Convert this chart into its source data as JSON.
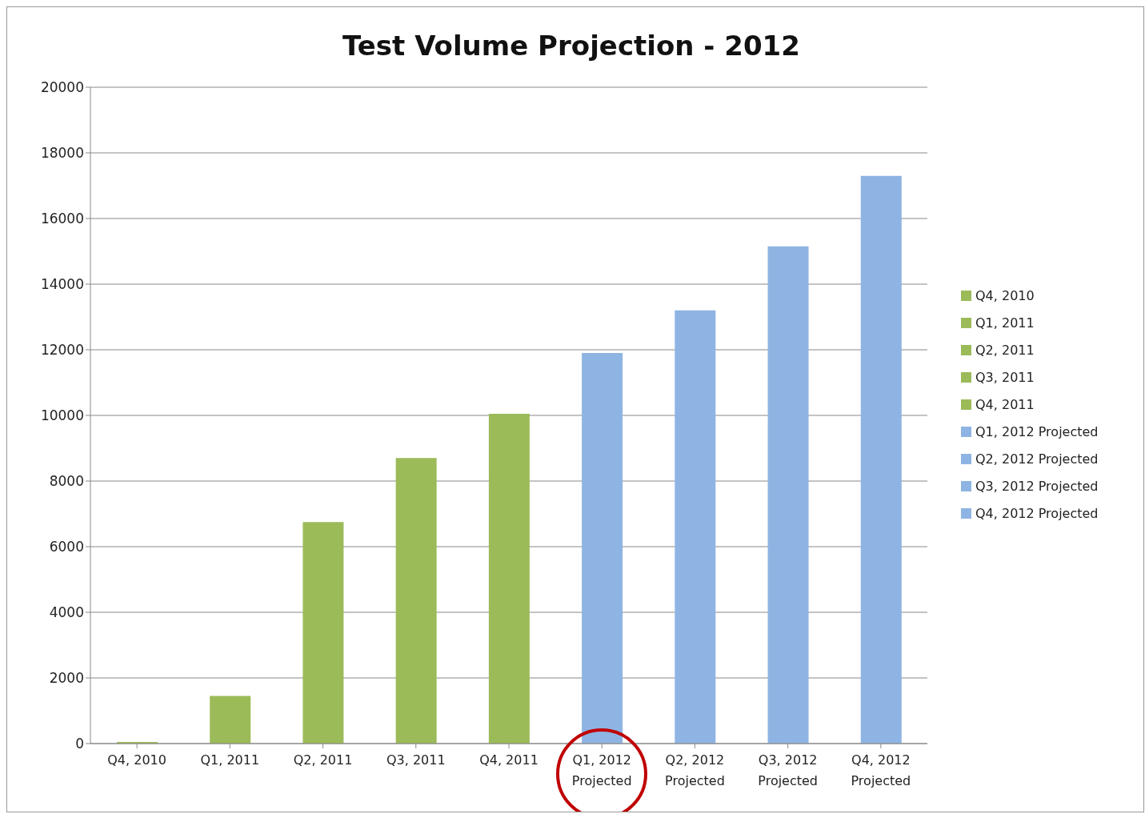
{
  "chart_data": {
    "type": "bar",
    "title": "Test Volume Projection - 2012",
    "stacked": true,
    "categories": [
      "Q4, 2010",
      "Q1, 2011",
      "Q2, 2011",
      "Q3, 2011",
      "Q4, 2011",
      "Q1, 2012 Projected",
      "Q2, 2012 Projected",
      "Q3, 2012 Projected",
      "Q4, 2012 Projected"
    ],
    "series": [
      {
        "name": "Q4, 2010",
        "color": "#9bbb59",
        "values": [
          50,
          null,
          null,
          null,
          null,
          null,
          null,
          null,
          null
        ]
      },
      {
        "name": "Q1, 2011",
        "color": "#9bbb59",
        "values": [
          null,
          1450,
          null,
          null,
          null,
          null,
          null,
          null,
          null
        ]
      },
      {
        "name": "Q2, 2011",
        "color": "#9bbb59",
        "values": [
          null,
          null,
          6750,
          null,
          null,
          null,
          null,
          null,
          null
        ]
      },
      {
        "name": "Q3, 2011",
        "color": "#9bbb59",
        "values": [
          null,
          null,
          null,
          8700,
          null,
          null,
          null,
          null,
          null
        ]
      },
      {
        "name": "Q4, 2011",
        "color": "#9bbb59",
        "values": [
          null,
          null,
          null,
          null,
          10050,
          null,
          null,
          null,
          null
        ]
      },
      {
        "name": "Q1, 2012 Projected",
        "color": "#8eb4e3",
        "values": [
          null,
          null,
          null,
          null,
          null,
          11900,
          null,
          null,
          null
        ]
      },
      {
        "name": "Q2, 2012 Projected",
        "color": "#8eb4e3",
        "values": [
          null,
          null,
          null,
          null,
          null,
          null,
          13200,
          null,
          null
        ]
      },
      {
        "name": "Q3, 2012 Projected",
        "color": "#8eb4e3",
        "values": [
          null,
          null,
          null,
          null,
          null,
          null,
          null,
          15150,
          null
        ]
      },
      {
        "name": "Q4, 2012 Projected",
        "color": "#8eb4e3",
        "values": [
          null,
          null,
          null,
          null,
          null,
          null,
          null,
          null,
          17300
        ]
      }
    ],
    "ylim": [
      0,
      20000
    ],
    "yticks": [
      0,
      2000,
      4000,
      6000,
      8000,
      10000,
      12000,
      14000,
      16000,
      18000,
      20000
    ],
    "grid": "y",
    "legend": "right"
  }
}
